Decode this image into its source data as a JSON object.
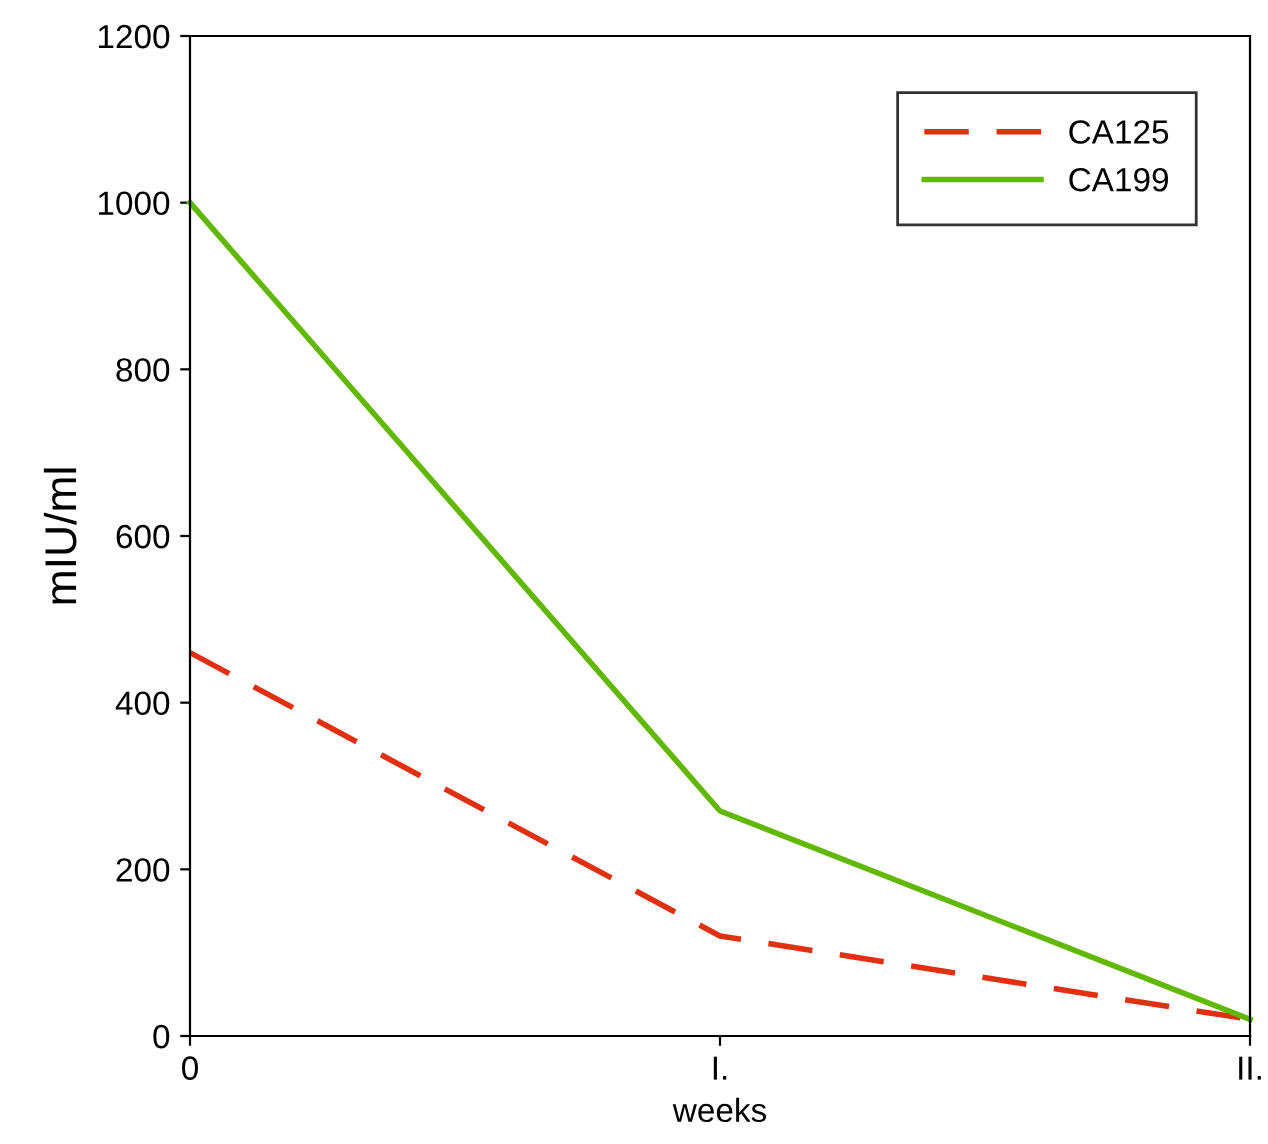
{
  "chart_data": {
    "type": "line",
    "xlabel": "weeks",
    "ylabel": "mIU/ml",
    "categories": [
      "0",
      "I.",
      "II."
    ],
    "series": [
      {
        "name": "CA125",
        "color": "#e03010",
        "values": [
          460,
          120,
          20
        ],
        "line_style": "dashed"
      },
      {
        "name": "CA199",
        "color": "#60b800",
        "values": [
          1000,
          270,
          20
        ],
        "line_style": "solid"
      }
    ],
    "ylim": [
      0,
      1200
    ],
    "yticks": [
      0,
      200,
      400,
      600,
      800,
      1000,
      1200
    ],
    "grid": false,
    "legend": "top right",
    "marker": "none"
  }
}
